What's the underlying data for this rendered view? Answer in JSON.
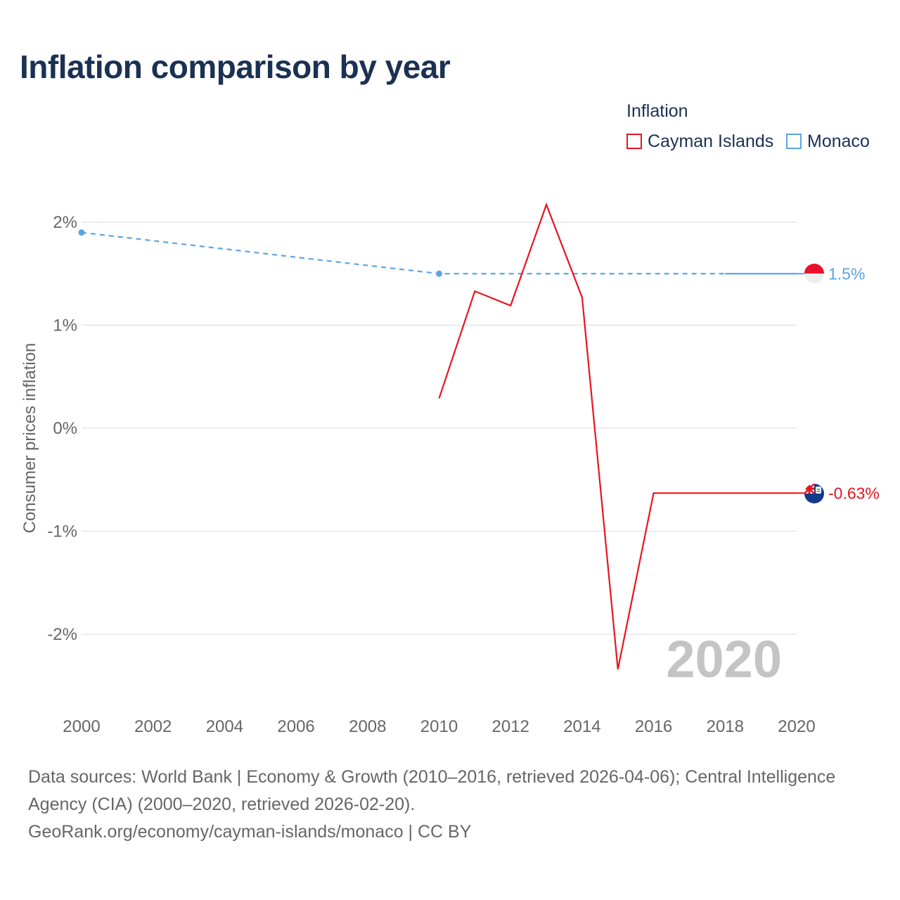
{
  "title": "Inflation comparison by year",
  "legend": {
    "title": "Inflation",
    "items": [
      {
        "label": "Cayman Islands",
        "color": "#e8141e"
      },
      {
        "label": "Monaco",
        "color": "#5aa5e6"
      }
    ]
  },
  "chart_data": {
    "type": "line",
    "title": "Inflation comparison by year",
    "xlabel": "",
    "ylabel": "Consumer prices inflation",
    "xlim": [
      2000,
      2020
    ],
    "ylim": [
      -2.5,
      2.3
    ],
    "x_ticks": [
      "2000",
      "2002",
      "2004",
      "2006",
      "2008",
      "2010",
      "2012",
      "2014",
      "2016",
      "2018",
      "2020"
    ],
    "y_ticks": [
      {
        "value": 2,
        "label": "2%"
      },
      {
        "value": 1,
        "label": "1%"
      },
      {
        "value": 0,
        "label": "0%"
      },
      {
        "value": -1,
        "label": "-1%"
      },
      {
        "value": -2,
        "label": "-2%"
      }
    ],
    "year_watermark": "2020",
    "series": [
      {
        "name": "Cayman Islands",
        "color": "#e8141e",
        "x": [
          2010,
          2011,
          2012,
          2013,
          2014,
          2015,
          2016,
          2017,
          2018,
          2019,
          2020
        ],
        "values": [
          0.29,
          1.33,
          1.19,
          2.17,
          1.27,
          -2.34,
          -0.63,
          -0.63,
          -0.63,
          -0.63,
          -0.63
        ],
        "end_label": "-0.63%",
        "flag": "cayman-islands-flag-icon"
      },
      {
        "name": "Monaco",
        "color": "#5aa5e6",
        "x": [
          2000,
          2010,
          2020
        ],
        "values": [
          1.9,
          1.5,
          1.5
        ],
        "markers": [
          2000,
          2010
        ],
        "dashed_until": 2018,
        "end_label": "1.5%",
        "flag": "monaco-flag-icon"
      }
    ]
  },
  "footer": {
    "line1": "Data sources: World Bank | Economy & Growth (2010–2016, retrieved 2026-04-06); Central Intelligence",
    "line2": "Agency (CIA) (2000–2020, retrieved 2026-02-20).",
    "line3": "GeoRank.org/economy/cayman-islands/monaco | CC BY"
  }
}
